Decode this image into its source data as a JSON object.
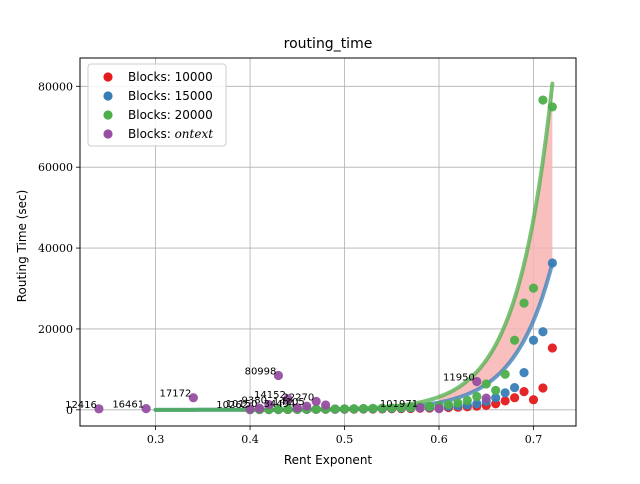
{
  "chart_data": {
    "type": "scatter",
    "title": "routing_time",
    "xlabel": "Rent Exponent",
    "ylabel": "Routing Time (sec)",
    "xlim": [
      0.22,
      0.745
    ],
    "ylim": [
      -4000,
      87000
    ],
    "xticks": [
      0.3,
      0.4,
      0.5,
      0.6,
      0.7
    ],
    "xtick_labels": [
      "0.3",
      "0.4",
      "0.5",
      "0.6",
      "0.7"
    ],
    "yticks": [
      0,
      20000,
      40000,
      60000,
      80000
    ],
    "ytick_labels": [
      "0",
      "20000",
      "40000",
      "60000",
      "80000"
    ],
    "grid": true,
    "legend_position": "top-left",
    "series": [
      {
        "name": "Blocks: 10000",
        "legend_prefix": "Blocks: ",
        "legend_value": "10000",
        "color": "#e41a1c",
        "x": [
          0.4,
          0.41,
          0.42,
          0.43,
          0.44,
          0.45,
          0.46,
          0.47,
          0.48,
          0.49,
          0.5,
          0.51,
          0.52,
          0.53,
          0.54,
          0.55,
          0.56,
          0.57,
          0.58,
          0.59,
          0.6,
          0.61,
          0.62,
          0.63,
          0.64,
          0.65,
          0.66,
          0.67,
          0.68,
          0.69,
          0.7,
          0.71,
          0.72
        ],
        "y": [
          50,
          60,
          70,
          80,
          90,
          100,
          110,
          120,
          130,
          140,
          150,
          170,
          190,
          210,
          240,
          270,
          300,
          340,
          380,
          430,
          490,
          560,
          650,
          760,
          900,
          1100,
          1500,
          2200,
          3000,
          4500,
          2500,
          5400,
          15300
        ]
      },
      {
        "name": "Blocks: 15000",
        "legend_prefix": "Blocks: ",
        "legend_value": "15000",
        "color": "#377eb8",
        "x": [
          0.4,
          0.41,
          0.42,
          0.43,
          0.44,
          0.45,
          0.46,
          0.47,
          0.48,
          0.49,
          0.5,
          0.51,
          0.52,
          0.53,
          0.54,
          0.55,
          0.56,
          0.57,
          0.58,
          0.59,
          0.6,
          0.61,
          0.62,
          0.63,
          0.64,
          0.65,
          0.66,
          0.67,
          0.68,
          0.69,
          0.7,
          0.71,
          0.72
        ],
        "y": [
          60,
          70,
          80,
          90,
          100,
          110,
          120,
          140,
          160,
          180,
          200,
          220,
          250,
          280,
          320,
          360,
          410,
          470,
          540,
          620,
          720,
          850,
          1000,
          1200,
          1500,
          2100,
          3000,
          4200,
          5500,
          9200,
          17200,
          19300,
          36300
        ]
      },
      {
        "name": "Blocks: 20000",
        "legend_prefix": "Blocks: ",
        "legend_value": "20000",
        "color": "#4daf4a",
        "x": [
          0.4,
          0.41,
          0.42,
          0.43,
          0.44,
          0.45,
          0.46,
          0.47,
          0.48,
          0.49,
          0.5,
          0.51,
          0.52,
          0.53,
          0.54,
          0.55,
          0.56,
          0.57,
          0.58,
          0.59,
          0.6,
          0.61,
          0.62,
          0.63,
          0.64,
          0.65,
          0.66,
          0.67,
          0.68,
          0.69,
          0.7,
          0.71,
          0.72
        ],
        "y": [
          80,
          90,
          100,
          110,
          120,
          140,
          160,
          180,
          200,
          220,
          250,
          280,
          320,
          360,
          410,
          470,
          540,
          620,
          720,
          850,
          1000,
          1300,
          1700,
          2300,
          3300,
          6400,
          4800,
          8800,
          17200,
          26400,
          30100,
          76600,
          74900
        ]
      },
      {
        "name": "Blocks: ontext",
        "legend_prefix": "Blocks: ",
        "legend_value": "ontext",
        "color": "#984ea3",
        "x": [
          0.24,
          0.29,
          0.34,
          0.4,
          0.41,
          0.42,
          0.43,
          0.44,
          0.45,
          0.46,
          0.47,
          0.48,
          0.58,
          0.6,
          0.64,
          0.65
        ],
        "y": [
          250,
          300,
          3000,
          200,
          400,
          1300,
          8500,
          2700,
          500,
          900,
          2100,
          1200,
          500,
          300,
          7000,
          2900
        ],
        "labels": [
          "12416",
          "16461",
          "17172",
          "10262",
          "10150",
          "9380",
          "80998",
          "14152",
          "34494",
          "14105",
          "22270",
          "",
          "101971",
          "",
          "11950",
          ""
        ]
      }
    ],
    "fits": [
      {
        "series": "Blocks: 10000",
        "color": "#e41a1c",
        "a": 0,
        "b": 0
      },
      {
        "series": "Blocks: 15000",
        "color": "#377eb8",
        "a": 1.0,
        "b": 25.0,
        "x0": 0.3,
        "x1": 0.72
      },
      {
        "series": "Blocks: 20000",
        "color": "#4daf4a",
        "a": 1.0,
        "b": 26.9,
        "x0": 0.3,
        "x1": 0.72
      }
    ],
    "band": {
      "color": "#f8b4b4",
      "between": [
        "Blocks: 15000",
        "Blocks: 20000"
      ],
      "x0": 0.6,
      "x1": 0.72
    }
  }
}
